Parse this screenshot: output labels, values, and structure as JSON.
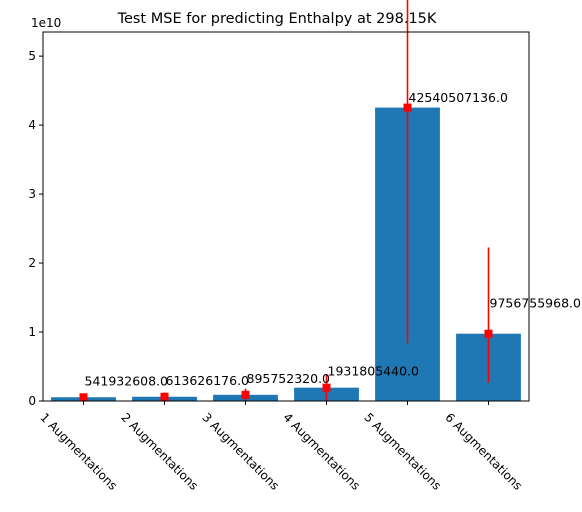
{
  "chart_data": {
    "type": "bar",
    "title": "Test MSE for predicting Enthalpy at 298.15K",
    "xlabel": "",
    "ylabel": "",
    "y_offset_label": "1e10",
    "y_scale": 10000000000,
    "ylim": [
      0,
      5.35
    ],
    "yticks": [
      0,
      1,
      2,
      3,
      4,
      5
    ],
    "categories": [
      "1 Augmentations",
      "2 Augmentations",
      "3 Augmentations",
      "4 Augmentations",
      "5 Augmentations",
      "6 Augmentations"
    ],
    "values": [
      541932608,
      613626176,
      895752320,
      1931805440,
      42540507136,
      9756755968
    ],
    "error_low": [
      541932608,
      613626176,
      895752320,
      1931805440,
      34200000000,
      7100000000
    ],
    "error_high": [
      541932608,
      613626176,
      895752320,
      1931805440,
      51000000000,
      12500000000
    ],
    "data_labels": [
      "541932608.0",
      "613626176.0",
      "895752320.0",
      "1931805440.0",
      "42540507136.0",
      "9756755968.0"
    ],
    "grid": false,
    "colors": {
      "bar": "#1f77b4",
      "error": "#ff0000",
      "marker": "#ff0000"
    }
  }
}
